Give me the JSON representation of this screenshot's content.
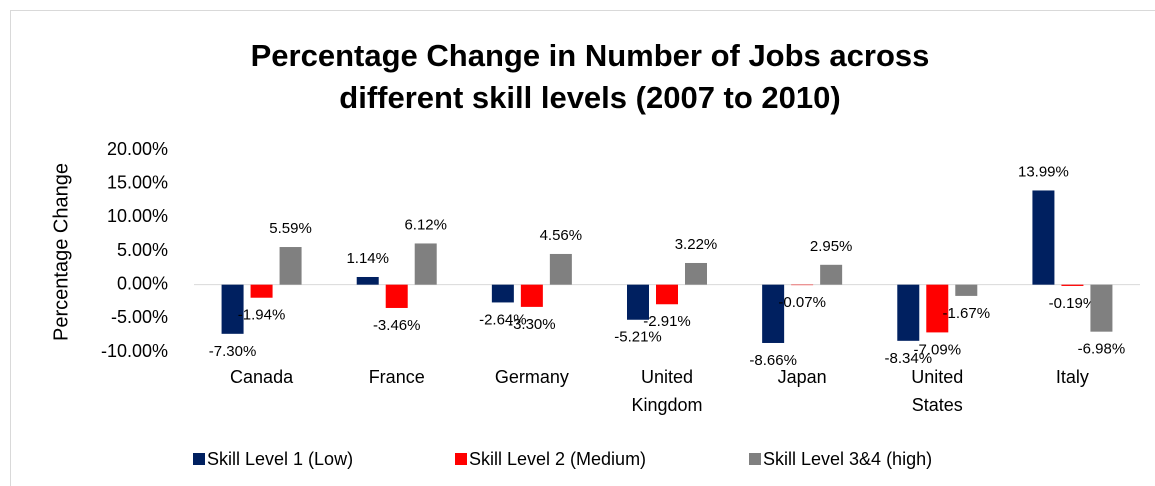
{
  "chart_data": {
    "type": "bar",
    "title": [
      "Percentage Change in Number of Jobs across",
      "different skill levels (2007 to 2010)"
    ],
    "y_label": "Percentage Change",
    "categories": [
      "Canada",
      "France",
      "Germany",
      "United Kingdom",
      "Japan",
      "United States",
      "Italy"
    ],
    "series": [
      {
        "name": "Skill Level 1 (Low)",
        "color": "#002060",
        "values": [
          -7.3,
          1.14,
          -2.64,
          -5.21,
          -8.66,
          -8.34,
          13.99
        ],
        "value_labels": [
          "-7.30%",
          "1.14%",
          "-2.64%",
          "-5.21%",
          "-8.66%",
          "-8.34%",
          "13.99%"
        ]
      },
      {
        "name": "Skill Level 2 (Medium)",
        "color": "#ff0000",
        "values": [
          -1.94,
          -3.46,
          -3.3,
          -2.91,
          -0.07,
          -7.09,
          -0.19
        ],
        "value_labels": [
          "-1.94%",
          "-3.46%",
          "-3.30%",
          "-2.91%",
          "-0.07%",
          "-7.09%",
          "-0.19%"
        ]
      },
      {
        "name": "Skill Level 3&4 (high)",
        "color": "#808080",
        "values": [
          5.59,
          6.12,
          4.56,
          3.22,
          2.95,
          -1.67,
          -6.98
        ],
        "value_labels": [
          "5.59%",
          "6.12%",
          "4.56%",
          "3.22%",
          "2.95%",
          "-1.67%",
          "-6.98%"
        ]
      }
    ],
    "ylim": [
      -10,
      20
    ],
    "yticks": [
      {
        "value": -10,
        "label": "-10.00%"
      },
      {
        "value": -5,
        "label": "-5.00%"
      },
      {
        "value": 0,
        "label": "0.00%"
      },
      {
        "value": 5,
        "label": "5.00%"
      },
      {
        "value": 10,
        "label": "10.00%"
      },
      {
        "value": 15,
        "label": "15.00%"
      },
      {
        "value": 20,
        "label": "20.00%"
      }
    ],
    "grid": false,
    "legend": "bottom"
  }
}
